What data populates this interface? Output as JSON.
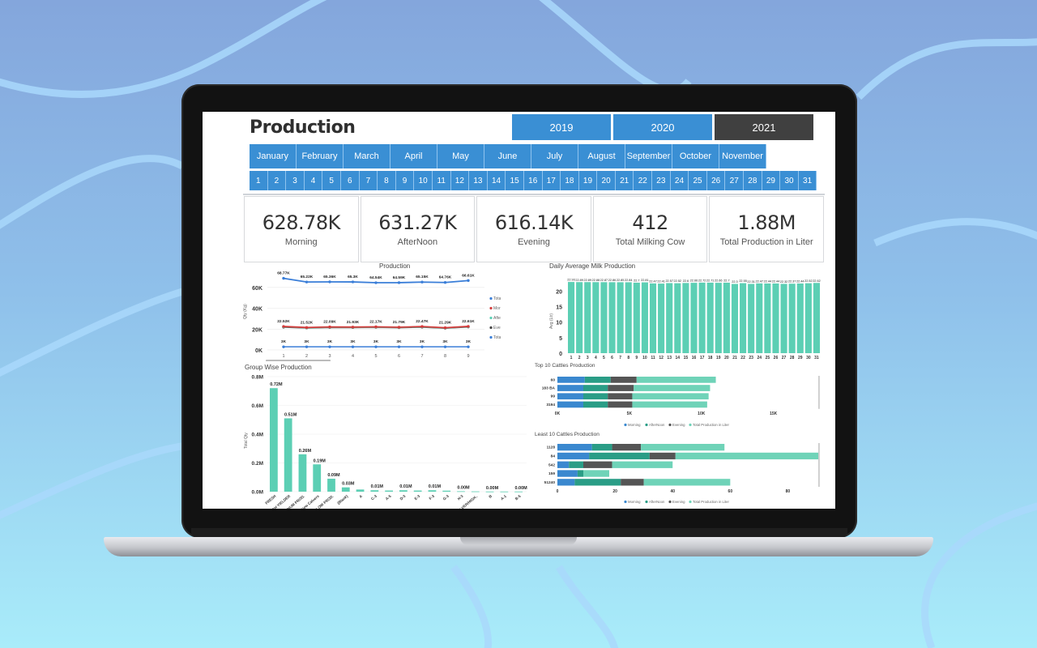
{
  "dashboard": {
    "title": "Production",
    "years": [
      "2019",
      "2020",
      "2021"
    ],
    "active_year": "2021",
    "months": [
      "January",
      "February",
      "March",
      "April",
      "May",
      "June",
      "July",
      "August",
      "September",
      "October",
      "November"
    ],
    "days": [
      "1",
      "2",
      "3",
      "4",
      "5",
      "6",
      "7",
      "8",
      "9",
      "10",
      "11",
      "12",
      "13",
      "14",
      "15",
      "16",
      "17",
      "18",
      "19",
      "20",
      "21",
      "22",
      "23",
      "24",
      "25",
      "26",
      "27",
      "28",
      "29",
      "30",
      "31"
    ],
    "kpis": [
      {
        "value": "628.78K",
        "label": "Morning"
      },
      {
        "value": "631.27K",
        "label": "AfterNoon"
      },
      {
        "value": "616.14K",
        "label": "Evening"
      },
      {
        "value": "412",
        "label": "Total Milking Cow"
      },
      {
        "value": "1.88M",
        "label": "Total Production in Liter"
      }
    ],
    "colors": {
      "accent": "#3a8fd4",
      "active_year": "#404040",
      "teal": "#5ccfb4",
      "blue": "#3a7ed8",
      "red": "#d43b3b",
      "dark": "#444444"
    }
  },
  "charts": {
    "production": {
      "title": "Production",
      "ylabel": "Qty (Kg)",
      "x": [
        "1",
        "2",
        "3",
        "4",
        "5",
        "6",
        "7",
        "8",
        "9"
      ],
      "yticks": [
        "60K",
        "40K",
        "20K",
        "0K"
      ],
      "ylim": [
        0,
        70000
      ],
      "series": [
        {
          "name": "Total Production in Liter",
          "values": [
            68770,
            65220,
            65360,
            65300,
            64540,
            64590,
            65150,
            64760,
            66610
          ],
          "labels": [
            "68.77K",
            "65.22K",
            "65.36K",
            "65.3K",
            "64.54K",
            "64.59K",
            "65.15K",
            "64.76K",
            "66.61K"
          ]
        },
        {
          "name": "Morning",
          "values": [
            22520,
            21520,
            22090,
            21930,
            22170,
            21790,
            22470,
            21290,
            22610
          ],
          "labels": [
            "22.52K",
            "21.52K",
            "22.09K",
            "21.93K",
            "22.17K",
            "21.79K",
            "22.47K",
            "21.29K",
            "22.61K"
          ]
        },
        {
          "name": "AfterNoon",
          "values": [
            22300,
            21300,
            21900,
            21700,
            21900,
            21600,
            22200,
            21100,
            22400
          ]
        },
        {
          "name": "Evening",
          "values": [
            21900,
            21100,
            21600,
            21500,
            21700,
            21400,
            21900,
            20900,
            22100
          ]
        },
        {
          "name": "Total Animals",
          "values": [
            3000,
            3000,
            3000,
            3000,
            3000,
            3000,
            3000,
            3000,
            3000
          ],
          "labels": [
            "3K",
            "3K",
            "3K",
            "3K",
            "3K",
            "3K",
            "3K",
            "3K",
            "3K"
          ]
        }
      ]
    },
    "daily_avg": {
      "title": "Daily Average Milk Production",
      "ylabel": "Avg (Ltr)",
      "yticks": [
        "20",
        "15",
        "10",
        "5",
        "0"
      ],
      "ylim": [
        0,
        24
      ],
      "days": [
        "1",
        "2",
        "3",
        "4",
        "5",
        "6",
        "7",
        "8",
        "9",
        "10",
        "11",
        "12",
        "13",
        "14",
        "15",
        "16",
        "17",
        "18",
        "19",
        "20",
        "21",
        "22",
        "23",
        "24",
        "25",
        "26",
        "27",
        "28",
        "29",
        "30",
        "31"
      ],
      "values": [
        22.93,
        22.89,
        22.89,
        22.88,
        22.87,
        22.86,
        22.85,
        22.84,
        22.7,
        22.81,
        22.47,
        22.41,
        22.57,
        22.52,
        22.6,
        22.66,
        22.72,
        22.71,
        22.66,
        22.7,
        22.3,
        22.55,
        22.31,
        22.47,
        22.44,
        22.44,
        22.32,
        22.37,
        22.44,
        22.52,
        22.62
      ],
      "labels": [
        "22.93",
        "22.89",
        "22.89",
        "22.88",
        "22.87",
        "22.86",
        "22.85",
        "22.84",
        "22.7",
        "22.81",
        "22.47",
        "22.41",
        "22.57",
        "22.52",
        "22.6",
        "22.66",
        "22.72",
        "22.71",
        "22.66",
        "22.7",
        "22.3",
        "22.55",
        "22.31",
        "22.47",
        "22.44",
        "22.44",
        "22.32",
        "22.37",
        "22.44",
        "22.52",
        "22.62"
      ]
    },
    "group_wise": {
      "title": "Group Wise Production",
      "ylabel": "Total Qty",
      "yticks": [
        "0.8M",
        "0.6M",
        "0.4M",
        "0.2M",
        "0.0M"
      ],
      "ylim": [
        0,
        0.8
      ],
      "categories": [
        "FRESH",
        "HIGH YIELDER",
        "MEDIUM PROD.",
        "New Calvers",
        "LOW PROD.",
        "(Blank)",
        "A",
        "C-3",
        "A-5",
        "D-3",
        "E-3",
        "F-3",
        "G-3",
        "H-3",
        "FRESH CALVER/HIGH..",
        "B",
        "A-1",
        "B-5"
      ],
      "values": [
        0.72,
        0.51,
        0.26,
        0.19,
        0.09,
        0.03,
        0.015,
        0.01,
        0.008,
        0.01,
        0.008,
        0.01,
        0.007,
        0.003,
        0.002,
        0.001,
        0.001,
        0.001
      ],
      "labels": [
        "0.72M",
        "0.51M",
        "0.26M",
        "0.19M",
        "0.09M",
        "0.03M",
        "",
        "0.01M",
        "",
        "0.01M",
        "",
        "0.01M",
        "",
        "0.00M",
        "",
        "0.00M",
        "",
        "0.00M"
      ]
    },
    "top10": {
      "title": "Top 10 Cattles Production",
      "categories": [
        "60",
        "183 BA",
        "99",
        "3194"
      ],
      "xticks": [
        "0K",
        "5K",
        "10K",
        "15K"
      ],
      "xlim": [
        0,
        18000
      ],
      "series": [
        {
          "name": "Morning",
          "values": [
            1900,
            1800,
            1800,
            1800
          ]
        },
        {
          "name": "AfterNoon",
          "values": [
            1800,
            1700,
            1700,
            1700
          ]
        },
        {
          "name": "Evening",
          "values": [
            1800,
            1800,
            1700,
            1700
          ]
        },
        {
          "name": "Total Production in Liter",
          "values": [
            5500,
            5300,
            5300,
            5200
          ]
        }
      ],
      "legend": [
        "Morning",
        "AfterNoon",
        "Evening",
        "Total Production in Liter"
      ]
    },
    "least10": {
      "title": "Least 10 Cattles Production",
      "categories": [
        "1128",
        "84",
        "542",
        "159",
        "51240"
      ],
      "xticks": [
        "0",
        "20",
        "40",
        "60",
        "80"
      ],
      "xlim": [
        0,
        90
      ],
      "series": [
        {
          "name": "Morning",
          "values": [
            12,
            11,
            4,
            7,
            6
          ]
        },
        {
          "name": "AfterNoon",
          "values": [
            7,
            21,
            5,
            2,
            16
          ]
        },
        {
          "name": "Evening",
          "values": [
            10,
            9,
            10,
            0,
            8
          ]
        },
        {
          "name": "Total Production in Liter",
          "values": [
            29,
            50,
            21,
            9,
            30
          ]
        }
      ],
      "legend": [
        "Morning",
        "AfterNoon",
        "Evening",
        "Total Production in Liter"
      ]
    }
  },
  "chart_data": [
    {
      "type": "line",
      "title": "Production",
      "ylabel": "Qty (Kg)",
      "x": [
        1,
        2,
        3,
        4,
        5,
        6,
        7,
        8,
        9
      ],
      "ylim": [
        0,
        70000
      ],
      "series": [
        {
          "name": "Total Production in Liter",
          "values": [
            68770,
            65220,
            65360,
            65300,
            64540,
            64590,
            65150,
            64760,
            66610
          ]
        },
        {
          "name": "Morning",
          "values": [
            22520,
            21520,
            22090,
            21930,
            22170,
            21790,
            22470,
            21290,
            22610
          ]
        },
        {
          "name": "Total Animals",
          "values": [
            3000,
            3000,
            3000,
            3000,
            3000,
            3000,
            3000,
            3000,
            3000
          ]
        }
      ]
    },
    {
      "type": "bar",
      "title": "Daily Average Milk Production",
      "ylabel": "Avg (Ltr)",
      "ylim": [
        0,
        24
      ]
    },
    {
      "type": "bar",
      "title": "Group Wise Production",
      "ylabel": "Total Qty",
      "ylim": [
        0,
        0.8
      ]
    },
    {
      "type": "bar",
      "title": "Top 10 Cattles Production",
      "xlim": [
        0,
        18000
      ]
    },
    {
      "type": "bar",
      "title": "Least 10 Cattles Production",
      "xlim": [
        0,
        90
      ]
    }
  ]
}
